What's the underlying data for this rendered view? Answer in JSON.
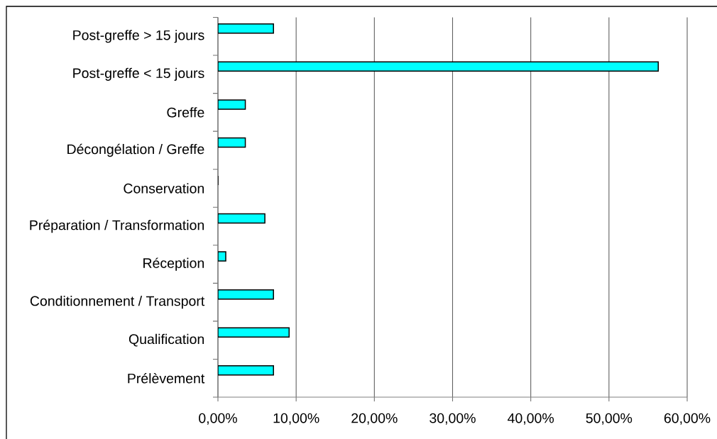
{
  "chart_data": {
    "type": "bar",
    "orientation": "horizontal",
    "categories": [
      "Post-greffe > 15 jours",
      "Post-greffe < 15 jours",
      "Greffe",
      "Décongélation / Greffe",
      "Conservation",
      "Préparation /  Transformation",
      "Réception",
      "Conditionnement / Transport",
      "Qualification",
      "Prélèvement"
    ],
    "values": [
      7.1,
      56.3,
      3.5,
      3.5,
      0,
      6.0,
      1,
      7.1,
      9.1,
      7.1
    ],
    "color": "#00ffff",
    "xlim": [
      0,
      60
    ],
    "xticks": [
      {
        "value": 0,
        "label": "0,00%"
      },
      {
        "value": 10,
        "label": "10,00%"
      },
      {
        "value": 20,
        "label": "20,00%"
      },
      {
        "value": 30,
        "label": "30,00%"
      },
      {
        "value": 40,
        "label": "40,00%"
      },
      {
        "value": 50,
        "label": "50,00%"
      },
      {
        "value": 60,
        "label": "60,00%"
      }
    ],
    "grid": "x"
  }
}
